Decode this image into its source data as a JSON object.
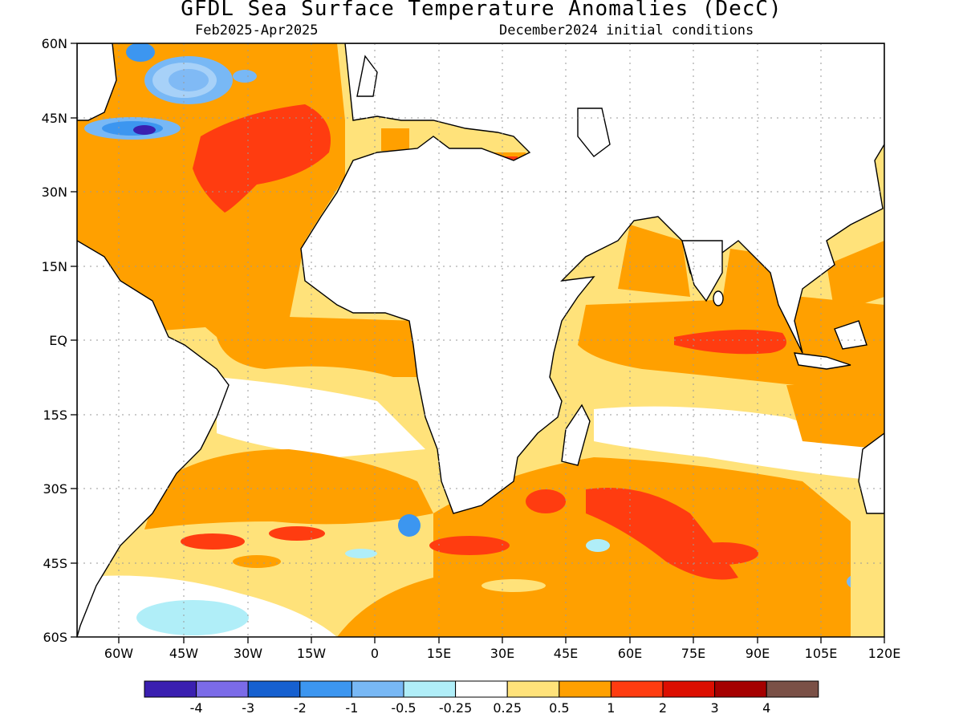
{
  "title": "GFDL Sea Surface Temperature Anomalies (DecC)",
  "subtitle_left": "Feb2025-Apr2025",
  "subtitle_right": "December2024 initial conditions",
  "lat_ticks": [
    "60N",
    "45N",
    "30N",
    "15N",
    "EQ",
    "15S",
    "30S",
    "45S",
    "60S"
  ],
  "lon_ticks": [
    "60W",
    "45W",
    "30W",
    "15W",
    "0",
    "15E",
    "30E",
    "45E",
    "60E",
    "75E",
    "90E",
    "105E",
    "120E"
  ],
  "colorbar": {
    "colors": [
      "#3a1fb0",
      "#7b6be8",
      "#1660d0",
      "#3c96f0",
      "#78b8f5",
      "#b0eef8",
      "#ffffff",
      "#ffe27a",
      "#ffa000",
      "#ff3c10",
      "#dc0e00",
      "#a50000",
      "#7a5046"
    ],
    "labels": [
      "-4",
      "-3",
      "-2",
      "-1",
      "-0.5",
      "-0.25",
      "0.25",
      "0.5",
      "1",
      "2",
      "3",
      "4"
    ]
  },
  "colors": {
    "land": "#ffffff",
    "gridline": "#9a9a9a"
  }
}
